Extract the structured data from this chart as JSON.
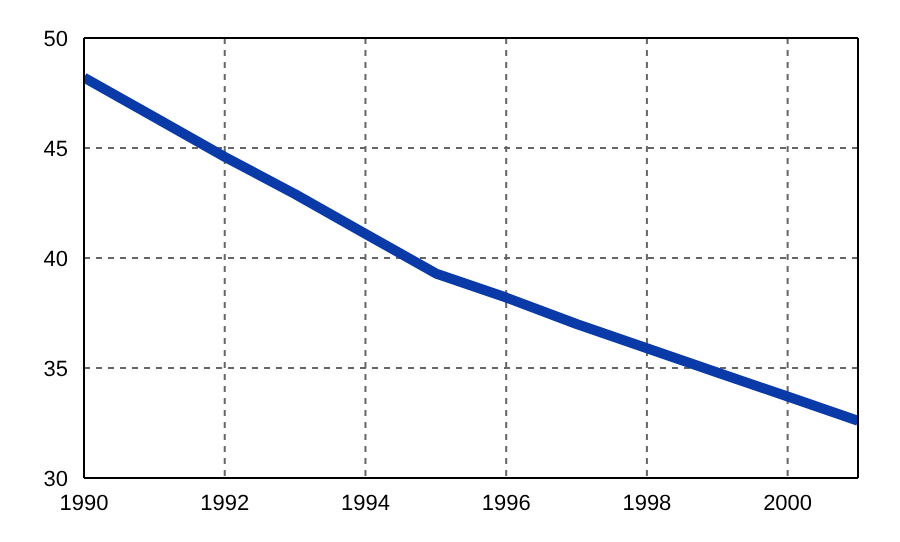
{
  "chart_data": {
    "type": "line",
    "x": [
      1990,
      1991,
      1992,
      1993,
      1994,
      1995,
      1996,
      1997,
      1998,
      1999,
      2000,
      2001
    ],
    "series": [
      {
        "color": "#0a3aa8",
        "values": [
          48.2,
          46.4,
          44.6,
          42.9,
          41.1,
          39.3,
          38.2,
          37.0,
          35.9,
          34.8,
          33.7,
          32.6
        ]
      }
    ],
    "xlim": [
      1990,
      2001
    ],
    "xticks": [
      1990,
      1992,
      1994,
      1996,
      1998,
      2000
    ],
    "ylim": [
      30,
      50
    ],
    "yticks": [
      30,
      35,
      40,
      45,
      50
    ],
    "grid": true,
    "line_style": "solid",
    "marker": "none"
  }
}
